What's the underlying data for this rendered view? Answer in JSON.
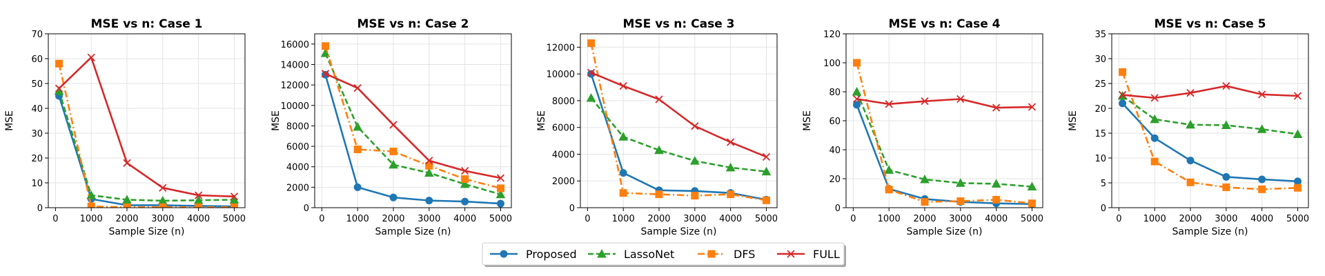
{
  "chart_data": [
    {
      "type": "line",
      "title": "MSE vs n: Case 1",
      "xlabel": "Sample Size (n)",
      "ylabel": "MSE",
      "x": [
        100,
        1000,
        2000,
        3000,
        4000,
        5000
      ],
      "xlim": [
        -200,
        5300
      ],
      "xticks": [
        0,
        1000,
        2000,
        3000,
        4000,
        5000
      ],
      "ylim": [
        0,
        70
      ],
      "yticks": [
        0,
        10,
        20,
        30,
        40,
        50,
        60,
        70
      ],
      "grid": true,
      "series": [
        {
          "name": "Proposed",
          "values": [
            45,
            3.5,
            1,
            1,
            0.7,
            0.5
          ]
        },
        {
          "name": "LassoNet",
          "values": [
            47,
            5,
            3.2,
            2.8,
            3,
            3.2
          ]
        },
        {
          "name": "DFS",
          "values": [
            58,
            0.5,
            0.2,
            0.2,
            0.2,
            0.2
          ]
        },
        {
          "name": "FULL",
          "values": [
            48,
            60.5,
            18,
            8,
            5,
            4.5
          ]
        }
      ]
    },
    {
      "type": "line",
      "title": "MSE vs n: Case 2",
      "xlabel": "Sample Size (n)",
      "ylabel": "MSE",
      "x": [
        100,
        1000,
        2000,
        3000,
        4000,
        5000
      ],
      "xlim": [
        -200,
        5300
      ],
      "xticks": [
        0,
        1000,
        2000,
        3000,
        4000,
        5000
      ],
      "ylim": [
        0,
        17000
      ],
      "yticks": [
        0,
        2000,
        4000,
        6000,
        8000,
        10000,
        12000,
        14000,
        16000
      ],
      "grid": true,
      "series": [
        {
          "name": "Proposed",
          "values": [
            13000,
            2000,
            1000,
            700,
            600,
            400
          ]
        },
        {
          "name": "LassoNet",
          "values": [
            15100,
            7900,
            4200,
            3400,
            2300,
            1300
          ]
        },
        {
          "name": "DFS",
          "values": [
            15800,
            5700,
            5500,
            4100,
            2800,
            1900
          ]
        },
        {
          "name": "FULL",
          "values": [
            13100,
            11700,
            8100,
            4600,
            3600,
            2900
          ]
        }
      ]
    },
    {
      "type": "line",
      "title": "MSE vs n: Case 3",
      "xlabel": "Sample Size (n)",
      "ylabel": "MSE",
      "x": [
        100,
        1000,
        2000,
        3000,
        4000,
        5000
      ],
      "xlim": [
        -200,
        5300
      ],
      "xticks": [
        0,
        1000,
        2000,
        3000,
        4000,
        5000
      ],
      "ylim": [
        0,
        13000
      ],
      "yticks": [
        0,
        2000,
        4000,
        6000,
        8000,
        10000,
        12000
      ],
      "grid": true,
      "series": [
        {
          "name": "Proposed",
          "values": [
            10000,
            2600,
            1300,
            1250,
            1100,
            600
          ]
        },
        {
          "name": "LassoNet",
          "values": [
            8200,
            5300,
            4300,
            3500,
            3000,
            2700
          ]
        },
        {
          "name": "DFS",
          "values": [
            12300,
            1100,
            1000,
            900,
            1000,
            550
          ]
        },
        {
          "name": "FULL",
          "values": [
            10100,
            9100,
            8100,
            6100,
            4900,
            3800
          ]
        }
      ]
    },
    {
      "type": "line",
      "title": "MSE vs n: Case 4",
      "xlabel": "Sample Size (n)",
      "ylabel": "MSE",
      "x": [
        100,
        1000,
        2000,
        3000,
        4000,
        5000
      ],
      "xlim": [
        -200,
        5300
      ],
      "xticks": [
        0,
        1000,
        2000,
        3000,
        4000,
        5000
      ],
      "ylim": [
        0,
        120
      ],
      "yticks": [
        0,
        20,
        40,
        60,
        80,
        100,
        120
      ],
      "grid": true,
      "series": [
        {
          "name": "Proposed",
          "values": [
            71,
            13,
            6,
            4,
            3,
            2.5
          ]
        },
        {
          "name": "LassoNet",
          "values": [
            80,
            26,
            19.5,
            17,
            16.5,
            14.5
          ]
        },
        {
          "name": "DFS",
          "values": [
            100,
            12.5,
            4,
            4.5,
            5.5,
            3
          ]
        },
        {
          "name": "FULL",
          "values": [
            75,
            71.5,
            73.5,
            75,
            69,
            69.5
          ]
        }
      ]
    },
    {
      "type": "line",
      "title": "MSE vs n: Case 5",
      "xlabel": "Sample Size (n)",
      "ylabel": "MSE",
      "x": [
        100,
        1000,
        2000,
        3000,
        4000,
        5000
      ],
      "xlim": [
        -200,
        5300
      ],
      "xticks": [
        0,
        1000,
        2000,
        3000,
        4000,
        5000
      ],
      "ylim": [
        0,
        35
      ],
      "yticks": [
        0,
        5,
        10,
        15,
        20,
        25,
        30,
        35
      ],
      "grid": true,
      "series": [
        {
          "name": "Proposed",
          "values": [
            21,
            14,
            9.5,
            6.2,
            5.7,
            5.3
          ]
        },
        {
          "name": "LassoNet",
          "values": [
            22.5,
            17.8,
            16.7,
            16.6,
            15.8,
            14.8
          ]
        },
        {
          "name": "DFS",
          "values": [
            27.3,
            9.3,
            5.1,
            4.1,
            3.7,
            4
          ]
        },
        {
          "name": "FULL",
          "values": [
            22.7,
            22.1,
            23.1,
            24.5,
            22.8,
            22.5
          ]
        }
      ]
    }
  ],
  "legend": {
    "placement": "bottom-center",
    "items": [
      {
        "label": "Proposed",
        "color": "#1f77b4",
        "marker": "circle",
        "linestyle": "solid"
      },
      {
        "label": "LassoNet",
        "color": "#2ca02c",
        "marker": "triangle",
        "linestyle": "dashed"
      },
      {
        "label": "DFS",
        "color": "#ff7f0e",
        "marker": "square",
        "linestyle": "dashdot"
      },
      {
        "label": "FULL",
        "color": "#d62728",
        "marker": "x",
        "linestyle": "solid"
      }
    ]
  }
}
